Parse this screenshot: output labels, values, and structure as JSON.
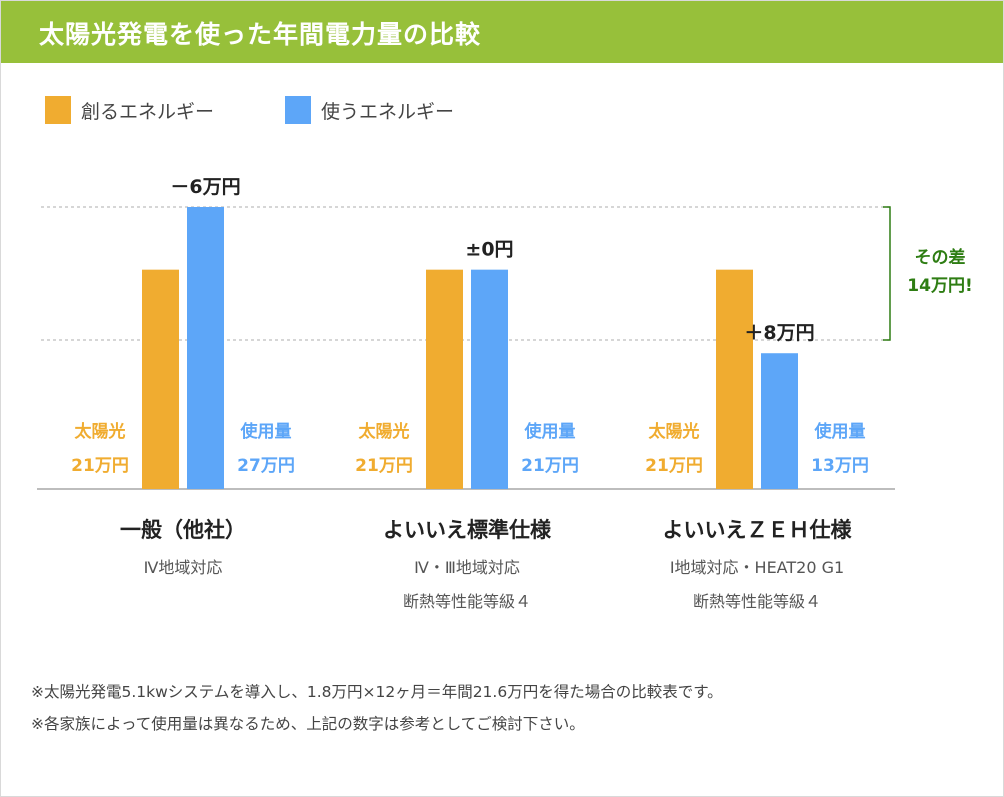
{
  "header": {
    "title": "太陽光発電を使った年間電力量の比較"
  },
  "colors": {
    "header_bg": "#97c03a",
    "create": "#f0ac30",
    "use": "#5da6f8",
    "diff": "#2e7d13",
    "text_dark": "#222222",
    "text_gray": "#555555"
  },
  "chart_data": {
    "type": "bar",
    "title": "",
    "legend": {
      "placement": "top-left",
      "items": [
        "創るエネルギー",
        "使うエネルギー"
      ]
    },
    "categories": [
      "一般（他社）",
      "よいいえ標準仕様",
      "よいいえＺＥＨ仕様"
    ],
    "category_notes": [
      [
        "Ⅳ地域対応"
      ],
      [
        "Ⅳ・Ⅲ地域対応",
        "断熱等性能等級４"
      ],
      [
        "Ⅰ地域対応・HEAT20 G1",
        "断熱等性能等級４"
      ]
    ],
    "series": [
      {
        "name": "創るエネルギー",
        "values": [
          21,
          21,
          21
        ],
        "label_title": "太陽光",
        "labels": [
          "21万円",
          "21万円",
          "21万円"
        ]
      },
      {
        "name": "使うエネルギー",
        "values": [
          27,
          21,
          13
        ],
        "label_title": "使用量",
        "labels": [
          "27万円",
          "21万円",
          "13万円"
        ]
      }
    ],
    "difference_labels": [
      "－6万円",
      "±0円",
      "＋8万円"
    ],
    "difference_annotation": {
      "line1": "その差",
      "line2": "14万円!"
    },
    "unit": "万円",
    "ylim": [
      0,
      27
    ],
    "grid": false
  },
  "notes": [
    "※太陽光発電5.1kwシステムを導入し、1.8万円×12ヶ月＝年間21.6万円を得た場合の比較表です。",
    "※各家族によって使用量は異なるため、上記の数字は参考としてご検討下さい。"
  ]
}
